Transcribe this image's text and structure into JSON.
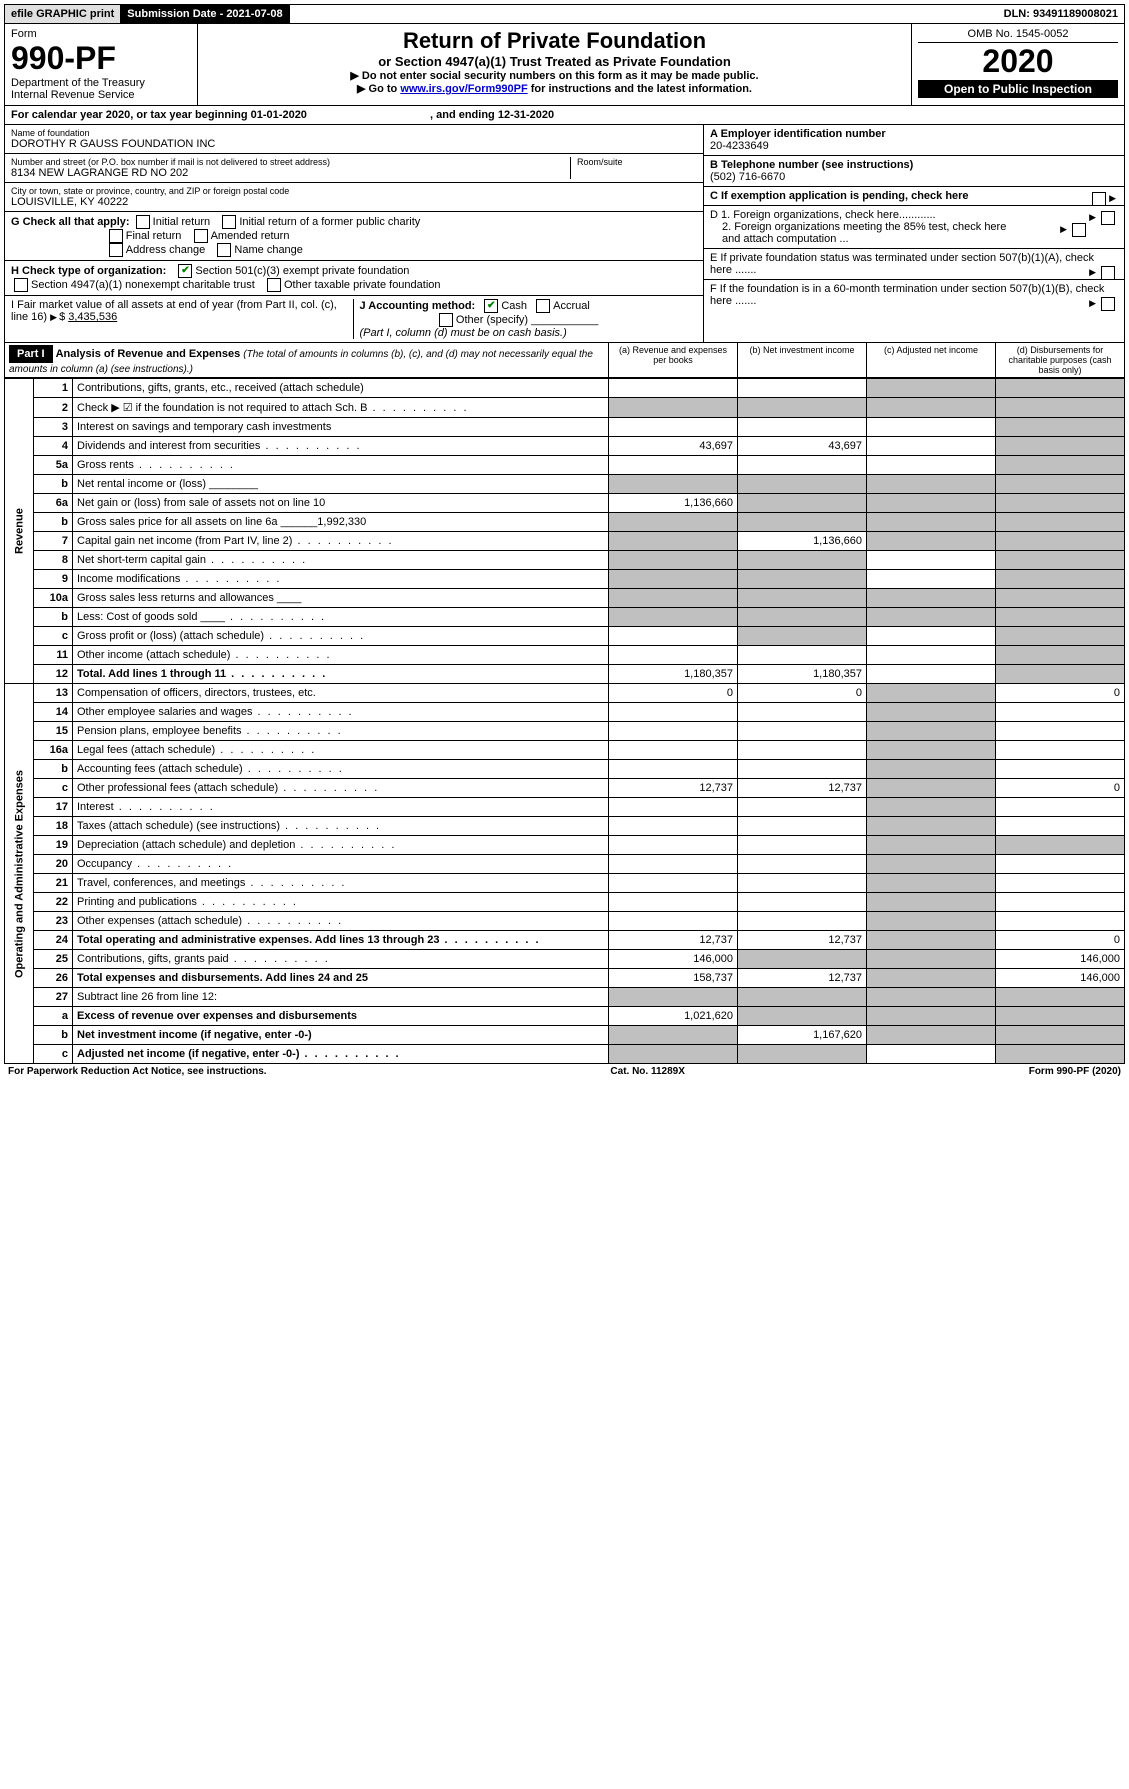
{
  "topbar": {
    "efile": "efile GRAPHIC print",
    "submission": "Submission Date - 2021-07-08",
    "dln": "DLN: 93491189008021"
  },
  "header": {
    "form_label": "Form",
    "form_number": "990-PF",
    "dept": "Department of the Treasury",
    "irs": "Internal Revenue Service",
    "title": "Return of Private Foundation",
    "subtitle": "or Section 4947(a)(1) Trust Treated as Private Foundation",
    "note1": "▶ Do not enter social security numbers on this form as it may be made public.",
    "note2_pre": "▶ Go to ",
    "note2_link": "www.irs.gov/Form990PF",
    "note2_post": " for instructions and the latest information.",
    "omb": "OMB No. 1545-0052",
    "year": "2020",
    "open": "Open to Public Inspection"
  },
  "calyear": {
    "prefix": "For calendar year 2020, or tax year beginning ",
    "begin": "01-01-2020",
    "mid": " , and ending ",
    "end": "12-31-2020"
  },
  "entity": {
    "name_label": "Name of foundation",
    "name": "DOROTHY R GAUSS FOUNDATION INC",
    "addr_label": "Number and street (or P.O. box number if mail is not delivered to street address)",
    "addr": "8134 NEW LAGRANGE RD NO 202",
    "room_label": "Room/suite",
    "city_label": "City or town, state or province, country, and ZIP or foreign postal code",
    "city": "LOUISVILLE, KY  40222",
    "a_label": "A Employer identification number",
    "a_val": "20-4233649",
    "b_label": "B Telephone number (see instructions)",
    "b_val": "(502) 716-6670",
    "c_label": "C If exemption application is pending, check here",
    "d1": "D 1. Foreign organizations, check here............",
    "d2": "2. Foreign organizations meeting the 85% test, check here and attach computation ...",
    "e": "E  If private foundation status was terminated under section 507(b)(1)(A), check here .......",
    "f": "F  If the foundation is in a 60-month termination under section 507(b)(1)(B), check here .......",
    "g_label": "G Check all that apply:",
    "g_opts": [
      "Initial return",
      "Initial return of a former public charity",
      "Final return",
      "Amended return",
      "Address change",
      "Name change"
    ],
    "h_label": "H Check type of organization:",
    "h_opt1": "Section 501(c)(3) exempt private foundation",
    "h_opt2": "Section 4947(a)(1) nonexempt charitable trust",
    "h_opt3": "Other taxable private foundation",
    "i_label": "I Fair market value of all assets at end of year (from Part II, col. (c), line 16)",
    "i_val": "3,435,536",
    "j_label": "J Accounting method:",
    "j_cash": "Cash",
    "j_accrual": "Accrual",
    "j_other": "Other (specify)",
    "j_note": "(Part I, column (d) must be on cash basis.)"
  },
  "part1": {
    "label": "Part I",
    "title": "Analysis of Revenue and Expenses",
    "title_note": "(The total of amounts in columns (b), (c), and (d) may not necessarily equal the amounts in column (a) (see instructions).)",
    "col_a": "(a)   Revenue and expenses per books",
    "col_b": "(b)  Net investment income",
    "col_c": "(c)  Adjusted net income",
    "col_d": "(d)  Disbursements for charitable purposes (cash basis only)"
  },
  "sections": {
    "revenue": "Revenue",
    "expenses": "Operating and Administrative Expenses"
  },
  "rows": [
    {
      "n": "1",
      "d": "Contributions, gifts, grants, etc., received (attach schedule)",
      "a": "",
      "b": "",
      "c": "g",
      "dcol": "g"
    },
    {
      "n": "2",
      "d": "Check ▶ ☑ if the foundation is not required to attach Sch. B",
      "a": "g",
      "b": "g",
      "c": "g",
      "dcol": "g",
      "dots": 1
    },
    {
      "n": "3",
      "d": "Interest on savings and temporary cash investments",
      "a": "",
      "b": "",
      "c": "",
      "dcol": "g"
    },
    {
      "n": "4",
      "d": "Dividends and interest from securities",
      "a": "43,697",
      "b": "43,697",
      "c": "",
      "dcol": "g",
      "dots": 1
    },
    {
      "n": "5a",
      "d": "Gross rents",
      "a": "",
      "b": "",
      "c": "",
      "dcol": "g",
      "dots": 1
    },
    {
      "n": "b",
      "d": "Net rental income or (loss)  ________",
      "a": "g",
      "b": "g",
      "c": "g",
      "dcol": "g"
    },
    {
      "n": "6a",
      "d": "Net gain or (loss) from sale of assets not on line 10",
      "a": "1,136,660",
      "b": "g",
      "c": "g",
      "dcol": "g"
    },
    {
      "n": "b",
      "d": "Gross sales price for all assets on line 6a ______1,992,330",
      "a": "g",
      "b": "g",
      "c": "g",
      "dcol": "g"
    },
    {
      "n": "7",
      "d": "Capital gain net income (from Part IV, line 2)",
      "a": "g",
      "b": "1,136,660",
      "c": "g",
      "dcol": "g",
      "dots": 1
    },
    {
      "n": "8",
      "d": "Net short-term capital gain",
      "a": "g",
      "b": "g",
      "c": "",
      "dcol": "g",
      "dots": 1
    },
    {
      "n": "9",
      "d": "Income modifications",
      "a": "g",
      "b": "g",
      "c": "",
      "dcol": "g",
      "dots": 1
    },
    {
      "n": "10a",
      "d": "Gross sales less returns and allowances  ____",
      "a": "g",
      "b": "g",
      "c": "g",
      "dcol": "g"
    },
    {
      "n": "b",
      "d": "Less: Cost of goods sold   ____",
      "a": "g",
      "b": "g",
      "c": "g",
      "dcol": "g",
      "dots": 1
    },
    {
      "n": "c",
      "d": "Gross profit or (loss) (attach schedule)",
      "a": "",
      "b": "g",
      "c": "",
      "dcol": "g",
      "dots": 1
    },
    {
      "n": "11",
      "d": "Other income (attach schedule)",
      "a": "",
      "b": "",
      "c": "",
      "dcol": "g",
      "dots": 1
    },
    {
      "n": "12",
      "d": "Total. Add lines 1 through 11",
      "a": "1,180,357",
      "b": "1,180,357",
      "c": "",
      "dcol": "g",
      "bold": 1,
      "dots": 1
    },
    {
      "n": "13",
      "d": "Compensation of officers, directors, trustees, etc.",
      "a": "0",
      "b": "0",
      "c": "g",
      "dcol": "0"
    },
    {
      "n": "14",
      "d": "Other employee salaries and wages",
      "a": "",
      "b": "",
      "c": "g",
      "dcol": "",
      "dots": 1
    },
    {
      "n": "15",
      "d": "Pension plans, employee benefits",
      "a": "",
      "b": "",
      "c": "g",
      "dcol": "",
      "dots": 1
    },
    {
      "n": "16a",
      "d": "Legal fees (attach schedule)",
      "a": "",
      "b": "",
      "c": "g",
      "dcol": "",
      "dots": 1
    },
    {
      "n": "b",
      "d": "Accounting fees (attach schedule)",
      "a": "",
      "b": "",
      "c": "g",
      "dcol": "",
      "dots": 1
    },
    {
      "n": "c",
      "d": "Other professional fees (attach schedule)",
      "a": "12,737",
      "b": "12,737",
      "c": "g",
      "dcol": "0",
      "dots": 1
    },
    {
      "n": "17",
      "d": "Interest",
      "a": "",
      "b": "",
      "c": "g",
      "dcol": "",
      "dots": 1
    },
    {
      "n": "18",
      "d": "Taxes (attach schedule) (see instructions)",
      "a": "",
      "b": "",
      "c": "g",
      "dcol": "",
      "dots": 1
    },
    {
      "n": "19",
      "d": "Depreciation (attach schedule) and depletion",
      "a": "",
      "b": "",
      "c": "g",
      "dcol": "g",
      "dots": 1
    },
    {
      "n": "20",
      "d": "Occupancy",
      "a": "",
      "b": "",
      "c": "g",
      "dcol": "",
      "dots": 1
    },
    {
      "n": "21",
      "d": "Travel, conferences, and meetings",
      "a": "",
      "b": "",
      "c": "g",
      "dcol": "",
      "dots": 1
    },
    {
      "n": "22",
      "d": "Printing and publications",
      "a": "",
      "b": "",
      "c": "g",
      "dcol": "",
      "dots": 1
    },
    {
      "n": "23",
      "d": "Other expenses (attach schedule)",
      "a": "",
      "b": "",
      "c": "g",
      "dcol": "",
      "dots": 1
    },
    {
      "n": "24",
      "d": "Total operating and administrative expenses. Add lines 13 through 23",
      "a": "12,737",
      "b": "12,737",
      "c": "g",
      "dcol": "0",
      "bold": 1,
      "dots": 1
    },
    {
      "n": "25",
      "d": "Contributions, gifts, grants paid",
      "a": "146,000",
      "b": "g",
      "c": "g",
      "dcol": "146,000",
      "dots": 1
    },
    {
      "n": "26",
      "d": "Total expenses and disbursements. Add lines 24 and 25",
      "a": "158,737",
      "b": "12,737",
      "c": "g",
      "dcol": "146,000",
      "bold": 1
    },
    {
      "n": "27",
      "d": "Subtract line 26 from line 12:",
      "a": "g",
      "b": "g",
      "c": "g",
      "dcol": "g"
    },
    {
      "n": "a",
      "d": "Excess of revenue over expenses and disbursements",
      "a": "1,021,620",
      "b": "g",
      "c": "g",
      "dcol": "g",
      "bold": 1
    },
    {
      "n": "b",
      "d": "Net investment income (if negative, enter -0-)",
      "a": "g",
      "b": "1,167,620",
      "c": "g",
      "dcol": "g",
      "bold": 1
    },
    {
      "n": "c",
      "d": "Adjusted net income (if negative, enter -0-)",
      "a": "g",
      "b": "g",
      "c": "",
      "dcol": "g",
      "bold": 1,
      "dots": 1
    }
  ],
  "footer": {
    "left": "For Paperwork Reduction Act Notice, see instructions.",
    "mid": "Cat. No. 11289X",
    "right": "Form 990-PF (2020)"
  }
}
